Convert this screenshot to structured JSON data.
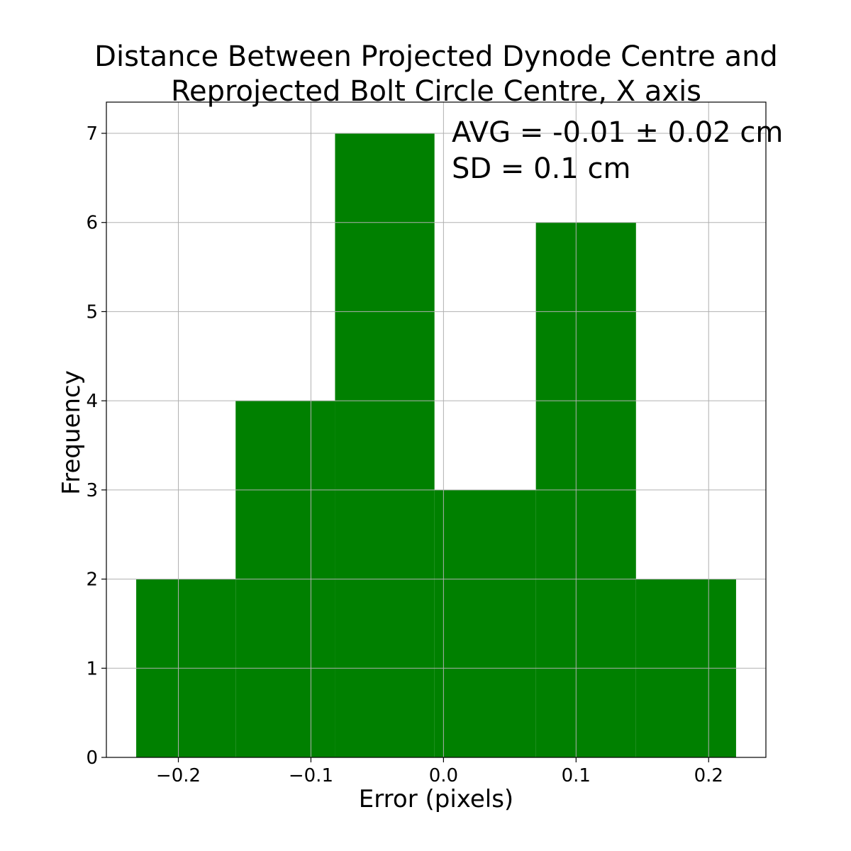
{
  "chart_data": {
    "type": "bar",
    "title_lines": [
      "Distance Between Projected Dynode Centre and",
      "Reprojected Bolt Circle Centre, X axis"
    ],
    "xlabel": "Error (pixels)",
    "ylabel": "Frequency",
    "annotations": [
      "AVG = -0.01 ± 0.02 cm",
      "SD = 0.1 cm"
    ],
    "bins": [
      {
        "x0": -0.2318,
        "x1": -0.1568,
        "count": 2
      },
      {
        "x0": -0.1568,
        "x1": -0.0818,
        "count": 4
      },
      {
        "x0": -0.0818,
        "x1": -0.0068,
        "count": 7
      },
      {
        "x0": -0.0068,
        "x1": 0.0697,
        "count": 3
      },
      {
        "x0": 0.0697,
        "x1": 0.1452,
        "count": 6
      },
      {
        "x0": 0.1452,
        "x1": 0.2207,
        "count": 2
      }
    ],
    "xlim": [
      -0.2543,
      0.2432
    ],
    "ylim": [
      0,
      7.35
    ],
    "xticks": [
      -0.2,
      -0.1,
      0.0,
      0.1,
      0.2
    ],
    "xtick_labels": [
      "−0.2",
      "−0.1",
      "0.0",
      "0.1",
      "0.2"
    ],
    "yticks": [
      0,
      1,
      2,
      3,
      4,
      5,
      6,
      7
    ],
    "ytick_labels": [
      "0",
      "1",
      "2",
      "3",
      "4",
      "5",
      "6",
      "7"
    ],
    "grid": true,
    "bar_color": "#008000"
  }
}
